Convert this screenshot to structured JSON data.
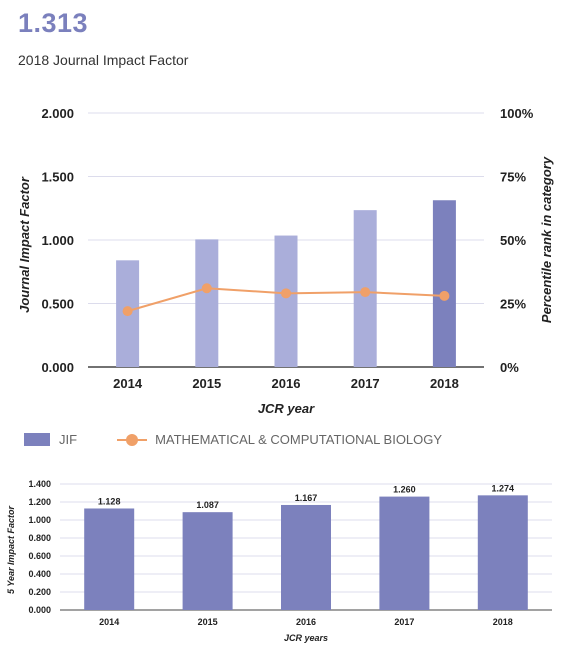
{
  "header": {
    "value": "1.313",
    "subtitle": "2018 Journal Impact Factor"
  },
  "legend": {
    "jif_label": "JIF",
    "category_label": "MATHEMATICAL & COMPUTATIONAL BIOLOGY"
  },
  "colors": {
    "bar_light": "#aaaeda",
    "bar_dark": "#7c81bd",
    "line": "#f0a068",
    "five_year_bar": "#7c81bd"
  },
  "chart_data": [
    {
      "type": "bar",
      "categories": [
        "2014",
        "2015",
        "2016",
        "2017",
        "2018"
      ],
      "series": [
        {
          "name": "JIF",
          "type": "bar",
          "axis": "left",
          "values": [
            0.84,
            1.005,
            1.035,
            1.235,
            1.313
          ]
        },
        {
          "name": "MATHEMATICAL & COMPUTATIONAL BIOLOGY",
          "type": "line",
          "axis": "right",
          "values": [
            22,
            31,
            29,
            29.5,
            28
          ]
        }
      ],
      "highlight_category": "2018",
      "xlabel": "JCR year",
      "ylabel": "Journal Impact Factor",
      "ylabel_right": "Percentile rank in category",
      "ylim": [
        0,
        2
      ],
      "ylim_right": [
        0,
        100
      ],
      "yticks": [
        "0.000",
        "0.500",
        "1.000",
        "1.500",
        "2.000"
      ],
      "yticks_right": [
        "0%",
        "25%",
        "50%",
        "75%",
        "100%"
      ],
      "grid": true,
      "legend_position": "bottom-left"
    },
    {
      "type": "bar",
      "categories": [
        "2014",
        "2015",
        "2016",
        "2017",
        "2018"
      ],
      "values": [
        1.128,
        1.087,
        1.167,
        1.26,
        1.274
      ],
      "value_labels": [
        "1.128",
        "1.087",
        "1.167",
        "1.260",
        "1.274"
      ],
      "xlabel": "JCR years",
      "ylabel": "5 Year Impact Factor",
      "ylim": [
        0,
        1.4
      ],
      "yticks": [
        "0.000",
        "0.200",
        "0.400",
        "0.600",
        "0.800",
        "1.000",
        "1.200",
        "1.400"
      ],
      "grid": true
    }
  ]
}
